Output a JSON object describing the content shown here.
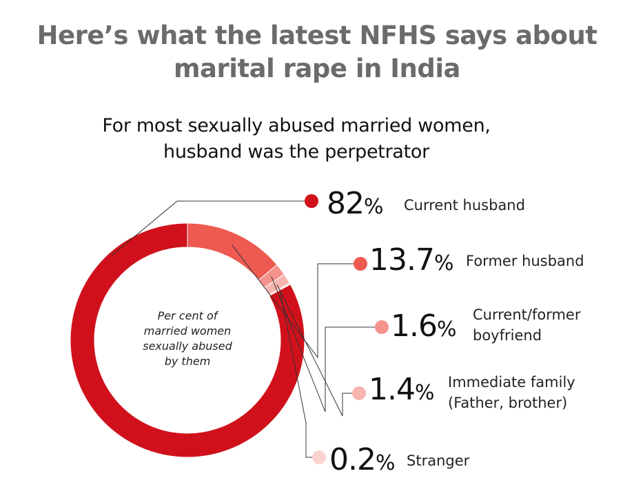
{
  "header": {
    "title_lines": [
      "Here’s what the latest NFHS says about",
      "marital rape in India"
    ]
  },
  "chart_data": {
    "type": "pie",
    "subtitle_lines": [
      "For most sexually abused married women,",
      "husband was the perpetrator"
    ],
    "center_label_lines": [
      "Per cent of",
      "married women",
      "sexually abused",
      "by them"
    ],
    "percent_symbol": "%",
    "slices": [
      {
        "value": 82,
        "value_text": "82",
        "label_lines": [
          "Current husband"
        ],
        "color": "#d0111b"
      },
      {
        "value": 13.7,
        "value_text": "13.7",
        "label_lines": [
          "Former husband"
        ],
        "color": "#ee5a52"
      },
      {
        "value": 1.6,
        "value_text": "1.6",
        "label_lines": [
          "Current/former",
          "boyfriend"
        ],
        "color": "#f4928c"
      },
      {
        "value": 1.4,
        "value_text": "1.4",
        "label_lines": [
          "Immediate family",
          "(Father, brother)"
        ],
        "color": "#f7b5b0"
      },
      {
        "value": 0.2,
        "value_text": "0.2",
        "label_lines": [
          "Stranger"
        ],
        "color": "#fad3d0"
      }
    ]
  }
}
